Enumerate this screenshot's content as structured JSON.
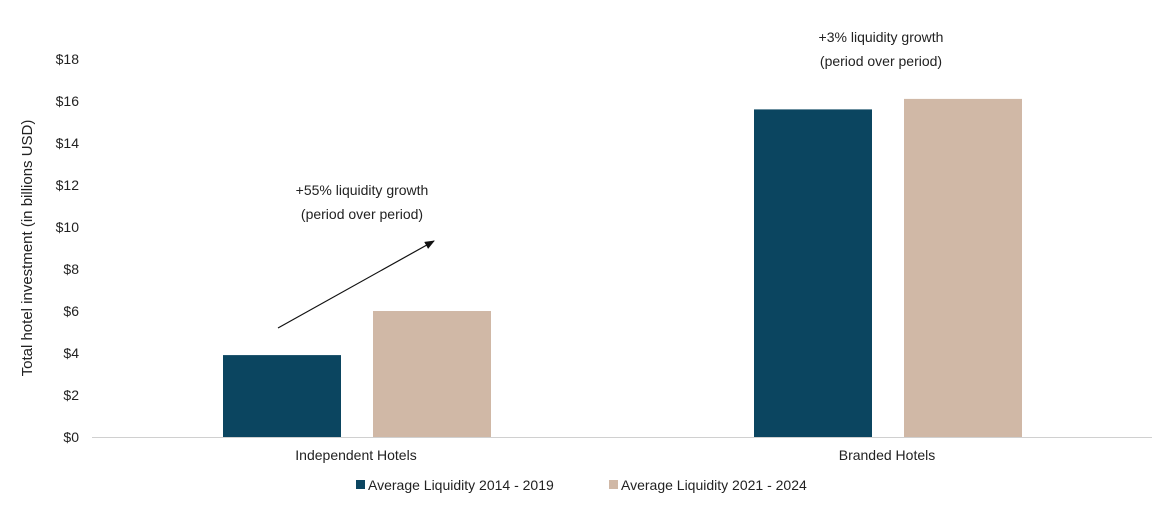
{
  "chart_data": {
    "type": "bar",
    "title": "",
    "xlabel": "",
    "ylabel": "Total hotel investment (in billions USD)",
    "ylim": [
      0,
      18
    ],
    "y_ticks": [
      0,
      2,
      4,
      6,
      8,
      10,
      12,
      14,
      16,
      18
    ],
    "y_tick_labels": [
      "$0",
      "$2",
      "$4",
      "$6",
      "$8",
      "$10",
      "$12",
      "$14",
      "$16",
      "$18"
    ],
    "grid": false,
    "categories": [
      "Independent Hotels",
      "Branded Hotels"
    ],
    "series": [
      {
        "name": "Average Liquidity 2014 - 2019",
        "color": "#0b4560",
        "values": [
          3.9,
          15.6
        ]
      },
      {
        "name": "Average Liquidity 2021 - 2024",
        "color": "#d0b8a6",
        "values": [
          6.0,
          16.1
        ]
      }
    ],
    "annotations": [
      {
        "category": "Independent Hotels",
        "lines": [
          "+55% liquidity growth",
          "(period over period)"
        ],
        "arrow": true
      },
      {
        "category": "Branded Hotels",
        "lines": [
          "+3% liquidity growth",
          "(period over period)"
        ],
        "arrow": false
      }
    ],
    "legend_position": "bottom-center"
  }
}
